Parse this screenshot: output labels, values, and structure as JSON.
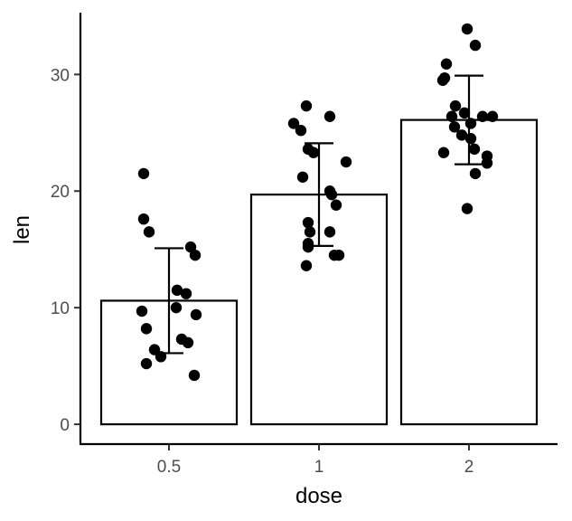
{
  "chart_data": {
    "type": "bar",
    "xlabel": "dose",
    "ylabel": "len",
    "categories": [
      "0.5",
      "1",
      "2"
    ],
    "values": [
      10.6,
      19.7,
      26.1
    ],
    "error_bars": [
      {
        "lower": 6.1,
        "upper": 15.1
      },
      {
        "lower": 15.3,
        "upper": 24.1
      },
      {
        "lower": 22.3,
        "upper": 29.9
      }
    ],
    "points": [
      [
        21.5,
        17.6,
        16.5,
        15.2,
        14.5,
        11.5,
        11.2,
        10.0,
        9.7,
        9.4,
        8.2,
        7.3,
        7.0,
        6.4,
        5.8,
        5.2,
        4.2
      ],
      [
        27.3,
        26.4,
        25.8,
        25.2,
        23.6,
        23.3,
        22.5,
        21.2,
        20.0,
        19.7,
        18.8,
        17.3,
        16.5,
        16.5,
        15.5,
        15.2,
        14.5,
        14.5,
        13.6
      ],
      [
        33.9,
        32.5,
        30.9,
        29.7,
        29.5,
        27.3,
        26.7,
        26.4,
        26.4,
        26.4,
        25.8,
        25.5,
        24.8,
        24.5,
        23.6,
        23.3,
        23.0,
        22.4,
        21.5,
        18.5
      ]
    ],
    "ylim": [
      -1.7,
      35.3
    ],
    "yticks": [
      0,
      10,
      20,
      30
    ],
    "grid": false,
    "legend": "none"
  }
}
